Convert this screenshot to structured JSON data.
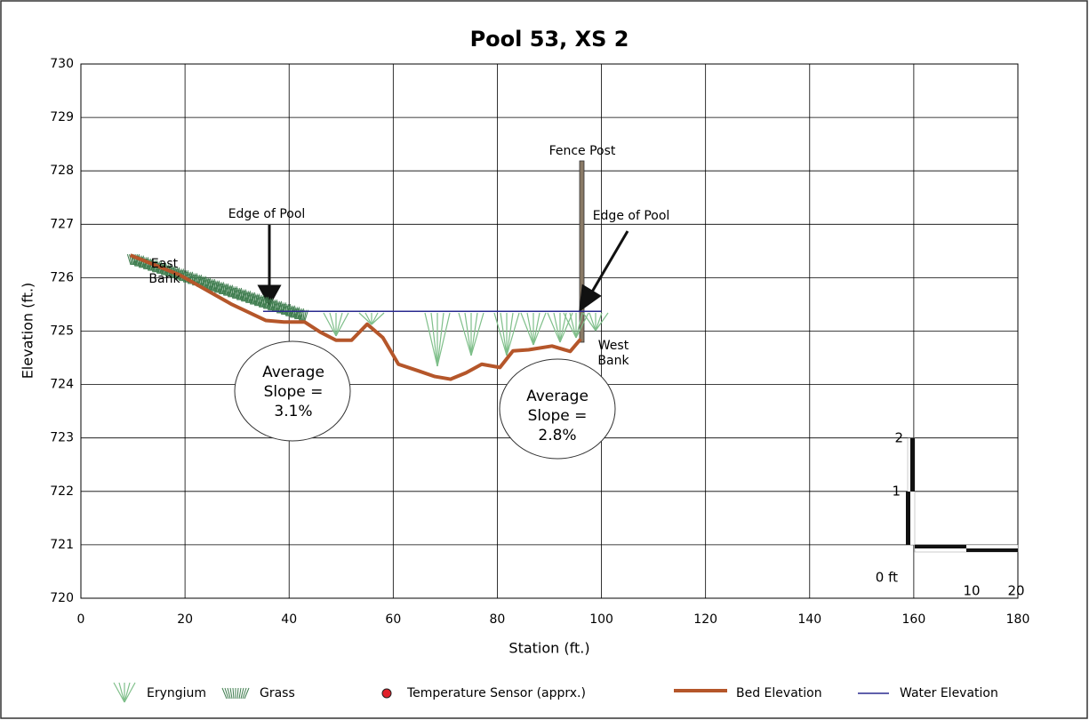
{
  "chart_data": {
    "type": "line",
    "title": "Pool 53, XS 2",
    "x_label": "Station (ft.)",
    "y_label": "Elevation (ft.)",
    "xlim": [
      0,
      180
    ],
    "xticks": [
      0,
      20,
      40,
      60,
      80,
      100,
      120,
      140,
      160,
      180
    ],
    "ylim": [
      720,
      730
    ],
    "yticks": [
      720,
      721,
      722,
      723,
      724,
      725,
      726,
      727,
      728,
      729,
      730
    ],
    "grid": true,
    "series": [
      {
        "name": "Bed Elevation",
        "color": "#b5562a",
        "x": [
          9.5,
          19,
          29,
          35.5,
          39,
          43,
          46,
          49,
          52,
          55,
          58,
          61,
          65,
          68,
          71,
          74,
          77,
          80.5,
          83,
          86,
          90.5,
          94,
          96
        ],
        "values": [
          726.42,
          726.05,
          725.5,
          725.2,
          725.17,
          725.17,
          724.98,
          724.83,
          724.83,
          725.13,
          724.88,
          724.38,
          724.25,
          724.15,
          724.1,
          724.22,
          724.38,
          724.32,
          724.63,
          724.65,
          724.72,
          724.62,
          724.85
        ]
      },
      {
        "name": "Water Elevation",
        "color": "#2b2b8f",
        "x": [
          35,
          100
        ],
        "values": [
          725.37,
          725.37
        ]
      }
    ],
    "other_legend_entries": [
      "Eryngium",
      "Grass",
      "Temperature Sensor (apprx.)"
    ],
    "annotations": [
      "Edge of Pool",
      "Edge of Pool",
      "Fence Post",
      "East Bank",
      "West Bank",
      "Average Slope = 3.1%",
      "Average Slope = 2.8%"
    ],
    "scale_bar_labels": [
      "0 ft",
      "10",
      "20",
      "1",
      "2"
    ]
  }
}
